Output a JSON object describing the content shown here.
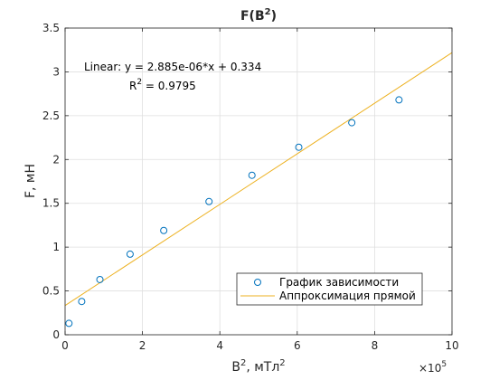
{
  "chart_data": {
    "type": "scatter",
    "title": "F(B²)",
    "title_main": "F(B",
    "title_sup": "2",
    "title_end": ")",
    "xlabel": "B², мТл²",
    "xlabel_main": "B",
    "xlabel_sup": "2",
    "xlabel_mid": ", мТл",
    "xlabel_sup2": "2",
    "ylabel": "F, мН",
    "x_exponent_base": "×10",
    "x_exponent_power": "5",
    "xlim": [
      0,
      1000000
    ],
    "ylim": [
      0,
      3.5
    ],
    "x_ticks": [
      0,
      2,
      4,
      6,
      8,
      10
    ],
    "x_tick_labels": [
      "0",
      "2",
      "4",
      "6",
      "8",
      "10"
    ],
    "y_ticks": [
      0,
      0.5,
      1,
      1.5,
      2,
      2.5,
      3,
      3.5
    ],
    "y_tick_labels": [
      "0",
      "0.5",
      "1",
      "1.5",
      "2",
      "2.5",
      "3",
      "3.5"
    ],
    "grid": true,
    "legend_position": "bottom-right",
    "series": [
      {
        "name": "График зависимости",
        "kind": "markers",
        "marker": "circle",
        "color": "#0072BD",
        "x": [
          10000,
          43000,
          90000,
          168000,
          255000,
          372000,
          483000,
          604000,
          741000,
          863000
        ],
        "y": [
          0.13,
          0.38,
          0.63,
          0.92,
          1.19,
          1.52,
          1.82,
          2.14,
          2.42,
          2.68
        ]
      },
      {
        "name": "Аппроксимация прямой",
        "kind": "line",
        "color": "#EDB120",
        "slope": 2.885e-06,
        "intercept": 0.334,
        "x": [
          0,
          1000000
        ],
        "y": [
          0.334,
          3.219
        ]
      }
    ],
    "annotation": {
      "equation": "Linear:  y = 2.885e-06*x + 0.334",
      "r2_prefix": "R",
      "r2_sup": "2",
      "r2_value": " = 0.9795"
    }
  }
}
